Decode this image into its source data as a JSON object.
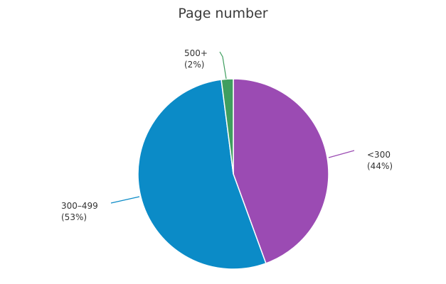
{
  "chart_data": {
    "type": "pie",
    "title": "Page number",
    "slices": [
      {
        "category": "<300",
        "value": 44,
        "pct_label": "(44%)",
        "color": "#9b4bb3"
      },
      {
        "category": "300–499",
        "value": 53,
        "pct_label": "(53%)",
        "color": "#0b8bc7"
      },
      {
        "category": "500+",
        "value": 2,
        "pct_label": "(2%)",
        "color": "#3f9e5f"
      }
    ],
    "start": "top",
    "direction": "clockwise",
    "legend": "none"
  }
}
